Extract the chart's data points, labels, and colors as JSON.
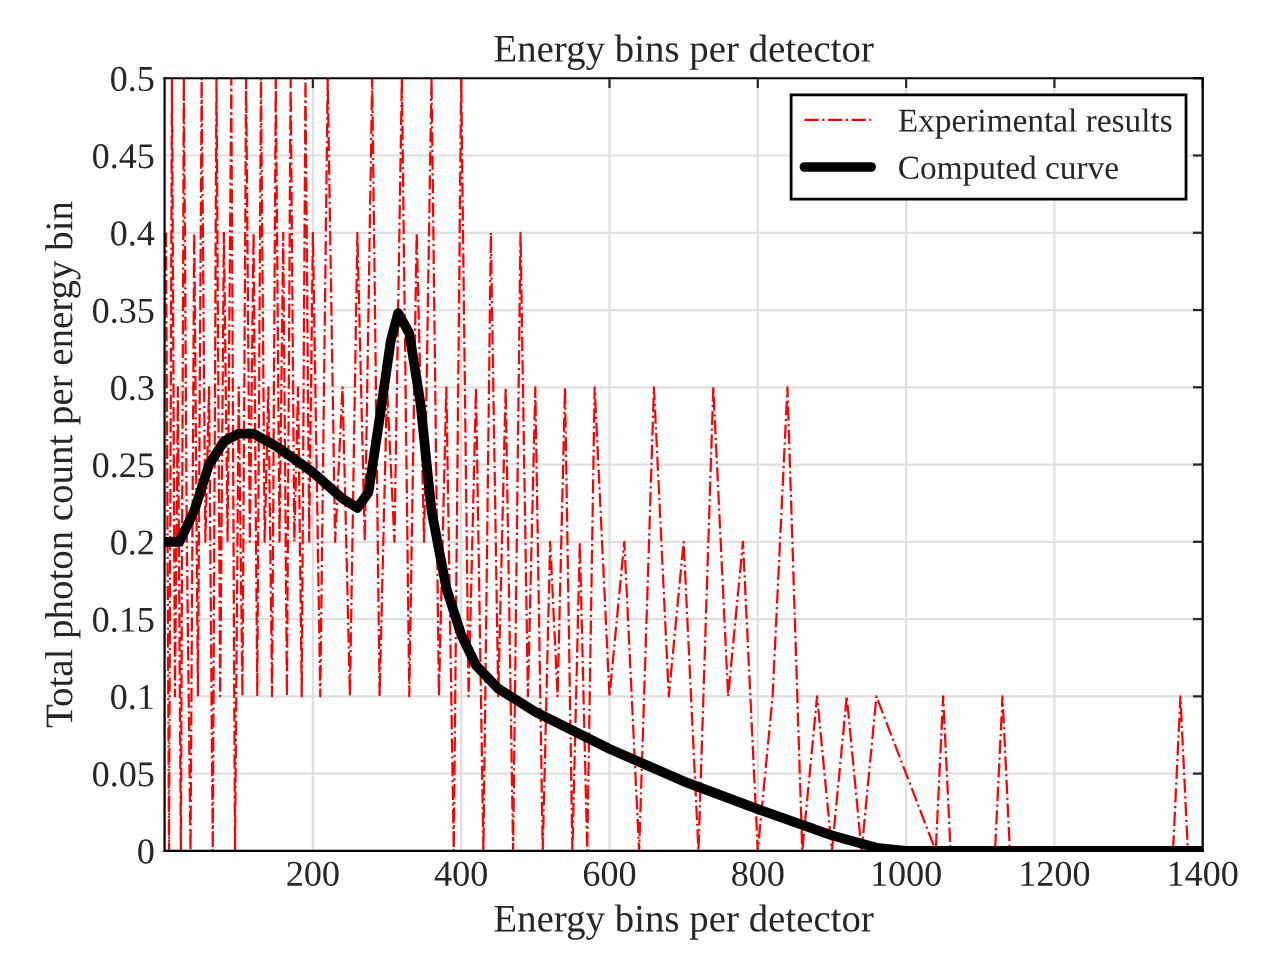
{
  "chart_data": {
    "type": "line",
    "title": "Energy bins per detector",
    "xlabel": "Energy bins per detector",
    "ylabel": "Total photon count per energy bin",
    "xlim": [
      0,
      1400
    ],
    "xticks": [
      200,
      400,
      600,
      800,
      1000,
      1200,
      1400
    ],
    "ylim": [
      0,
      0.5
    ],
    "yticks": [
      0,
      0.05,
      0.1,
      0.15,
      0.2,
      0.25,
      0.3,
      0.35,
      0.4,
      0.45,
      0.5
    ],
    "grid": true,
    "legend": "top right",
    "marker": "none",
    "series": [
      {
        "name": "Experimental results",
        "color": "#ff0000",
        "line_style": "dashdot",
        "x": [
          2,
          6,
          10,
          14,
          18,
          22,
          26,
          30,
          35,
          40,
          45,
          50,
          55,
          60,
          65,
          70,
          75,
          80,
          85,
          90,
          95,
          100,
          105,
          110,
          115,
          120,
          125,
          130,
          135,
          140,
          145,
          150,
          155,
          160,
          165,
          170,
          175,
          180,
          185,
          190,
          195,
          200,
          210,
          220,
          230,
          240,
          250,
          260,
          270,
          280,
          290,
          300,
          310,
          320,
          330,
          340,
          350,
          360,
          370,
          380,
          390,
          400,
          410,
          420,
          430,
          440,
          450,
          460,
          470,
          480,
          490,
          500,
          510,
          520,
          530,
          540,
          550,
          560,
          570,
          580,
          600,
          620,
          640,
          660,
          680,
          700,
          720,
          740,
          760,
          780,
          800,
          820,
          840,
          860,
          880,
          900,
          920,
          940,
          960,
          1040,
          1050,
          1060,
          1120,
          1130,
          1140,
          1360,
          1370,
          1380
        ],
        "values": [
          0.4,
          0,
          0.5,
          0.1,
          0.3,
          0,
          0.5,
          0.2,
          0,
          0.4,
          0.1,
          0.5,
          0.2,
          0.3,
          0,
          0.5,
          0.1,
          0.4,
          0.2,
          0.5,
          0,
          0.3,
          0.1,
          0.5,
          0.2,
          0.4,
          0.1,
          0.5,
          0.2,
          0.3,
          0.1,
          0.5,
          0.2,
          0.4,
          0.1,
          0.5,
          0.2,
          0.3,
          0.1,
          0.5,
          0.2,
          0.4,
          0.1,
          0.5,
          0.2,
          0.3,
          0.1,
          0.4,
          0.2,
          0.5,
          0.1,
          0.3,
          0.2,
          0.5,
          0.1,
          0.4,
          0.2,
          0.5,
          0.1,
          0.3,
          0,
          0.5,
          0.1,
          0.3,
          0,
          0.4,
          0.1,
          0.3,
          0,
          0.4,
          0.1,
          0.3,
          0,
          0.2,
          0.1,
          0.3,
          0,
          0.2,
          0,
          0.3,
          0.1,
          0.2,
          0,
          0.3,
          0.1,
          0.2,
          0,
          0.3,
          0.1,
          0.2,
          0,
          0.1,
          0.3,
          0,
          0.1,
          0,
          0.1,
          0,
          0.1,
          0,
          0.1,
          0,
          0,
          0.1,
          0,
          0,
          0.1,
          0
        ]
      },
      {
        "name": "Computed curve",
        "color": "#000000",
        "line_style": "solid",
        "x": [
          0,
          20,
          40,
          60,
          80,
          100,
          120,
          150,
          200,
          240,
          260,
          275,
          290,
          305,
          315,
          330,
          345,
          360,
          380,
          400,
          420,
          450,
          500,
          600,
          700,
          800,
          900,
          960,
          1000,
          1400
        ],
        "values": [
          0.2,
          0.2,
          0.22,
          0.25,
          0.265,
          0.27,
          0.27,
          0.262,
          0.245,
          0.228,
          0.222,
          0.232,
          0.28,
          0.33,
          0.348,
          0.335,
          0.29,
          0.22,
          0.17,
          0.14,
          0.12,
          0.105,
          0.09,
          0.066,
          0.045,
          0.027,
          0.01,
          0.002,
          0,
          0
        ]
      }
    ]
  }
}
